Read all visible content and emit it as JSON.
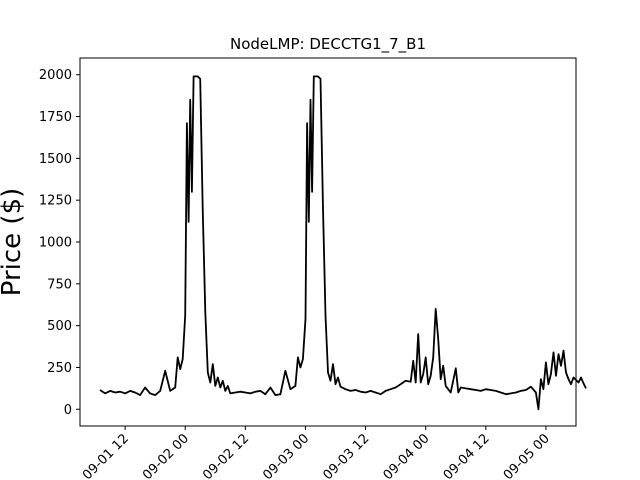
{
  "chart_data": {
    "type": "line",
    "title": "NodeLMP: DECCTG1_7_B1",
    "xlabel": "",
    "ylabel": "Price ($)",
    "x_axis_type": "datetime",
    "xlim": [
      "2024-09-01 03:00",
      "2024-09-05 06:00"
    ],
    "ylim": [
      -100,
      2100
    ],
    "yticks": [
      0,
      250,
      500,
      750,
      1000,
      1250,
      1500,
      1750,
      2000
    ],
    "ytick_labels": [
      "0",
      "250",
      "500",
      "750",
      "1000",
      "1250",
      "1500",
      "1750",
      "2000"
    ],
    "xticks": [
      "2024-09-01 12:00",
      "2024-09-02 00:00",
      "2024-09-02 12:00",
      "2024-09-03 00:00",
      "2024-09-03 12:00",
      "2024-09-04 00:00",
      "2024-09-04 12:00",
      "2024-09-05 00:00"
    ],
    "xtick_labels": [
      "09-01 12",
      "09-02 00",
      "09-02 12",
      "09-03 00",
      "09-03 12",
      "09-04 00",
      "09-04 12",
      "09-05 00"
    ],
    "grid": false,
    "legend": "none",
    "series": [
      {
        "color": "#000000",
        "points": [
          [
            "2024-09-01 07:00",
            115
          ],
          [
            "2024-09-01 08:00",
            95
          ],
          [
            "2024-09-01 09:00",
            110
          ],
          [
            "2024-09-01 10:00",
            100
          ],
          [
            "2024-09-01 11:00",
            105
          ],
          [
            "2024-09-01 12:00",
            95
          ],
          [
            "2024-09-01 13:00",
            110
          ],
          [
            "2024-09-01 14:00",
            100
          ],
          [
            "2024-09-01 15:00",
            85
          ],
          [
            "2024-09-01 16:00",
            130
          ],
          [
            "2024-09-01 17:00",
            95
          ],
          [
            "2024-09-01 18:00",
            85
          ],
          [
            "2024-09-01 19:00",
            110
          ],
          [
            "2024-09-01 20:00",
            230
          ],
          [
            "2024-09-01 21:00",
            110
          ],
          [
            "2024-09-01 22:00",
            130
          ],
          [
            "2024-09-01 22:30",
            310
          ],
          [
            "2024-09-01 23:00",
            240
          ],
          [
            "2024-09-01 23:30",
            300
          ],
          [
            "2024-09-02 00:00",
            560
          ],
          [
            "2024-09-02 00:20",
            1710
          ],
          [
            "2024-09-02 00:40",
            1120
          ],
          [
            "2024-09-02 01:00",
            1850
          ],
          [
            "2024-09-02 01:20",
            1300
          ],
          [
            "2024-09-02 01:40",
            1990
          ],
          [
            "2024-09-02 02:30",
            1990
          ],
          [
            "2024-09-02 03:00",
            1975
          ],
          [
            "2024-09-02 03:30",
            1200
          ],
          [
            "2024-09-02 04:00",
            580
          ],
          [
            "2024-09-02 04:30",
            220
          ],
          [
            "2024-09-02 05:00",
            160
          ],
          [
            "2024-09-02 05:30",
            270
          ],
          [
            "2024-09-02 06:00",
            140
          ],
          [
            "2024-09-02 06:30",
            190
          ],
          [
            "2024-09-02 07:00",
            130
          ],
          [
            "2024-09-02 07:30",
            170
          ],
          [
            "2024-09-02 08:00",
            110
          ],
          [
            "2024-09-02 08:30",
            140
          ],
          [
            "2024-09-02 09:00",
            95
          ],
          [
            "2024-09-02 10:00",
            100
          ],
          [
            "2024-09-02 11:00",
            105
          ],
          [
            "2024-09-02 12:00",
            100
          ],
          [
            "2024-09-02 13:00",
            95
          ],
          [
            "2024-09-02 14:00",
            105
          ],
          [
            "2024-09-02 15:00",
            110
          ],
          [
            "2024-09-02 16:00",
            90
          ],
          [
            "2024-09-02 17:00",
            130
          ],
          [
            "2024-09-02 18:00",
            85
          ],
          [
            "2024-09-02 19:00",
            90
          ],
          [
            "2024-09-02 20:00",
            230
          ],
          [
            "2024-09-02 21:00",
            120
          ],
          [
            "2024-09-02 22:00",
            140
          ],
          [
            "2024-09-02 22:30",
            310
          ],
          [
            "2024-09-02 23:00",
            250
          ],
          [
            "2024-09-02 23:30",
            300
          ],
          [
            "2024-09-03 00:00",
            540
          ],
          [
            "2024-09-03 00:20",
            1710
          ],
          [
            "2024-09-03 00:40",
            1120
          ],
          [
            "2024-09-03 01:00",
            1850
          ],
          [
            "2024-09-03 01:20",
            1300
          ],
          [
            "2024-09-03 01:40",
            1990
          ],
          [
            "2024-09-03 02:30",
            1990
          ],
          [
            "2024-09-03 03:00",
            1975
          ],
          [
            "2024-09-03 03:30",
            1200
          ],
          [
            "2024-09-03 04:00",
            560
          ],
          [
            "2024-09-03 04:30",
            220
          ],
          [
            "2024-09-03 05:00",
            170
          ],
          [
            "2024-09-03 05:30",
            270
          ],
          [
            "2024-09-03 06:00",
            150
          ],
          [
            "2024-09-03 06:30",
            190
          ],
          [
            "2024-09-03 07:00",
            135
          ],
          [
            "2024-09-03 08:00",
            120
          ],
          [
            "2024-09-03 09:00",
            110
          ],
          [
            "2024-09-03 10:00",
            115
          ],
          [
            "2024-09-03 11:00",
            105
          ],
          [
            "2024-09-03 12:00",
            100
          ],
          [
            "2024-09-03 13:00",
            110
          ],
          [
            "2024-09-03 14:00",
            100
          ],
          [
            "2024-09-03 15:00",
            90
          ],
          [
            "2024-09-03 16:00",
            110
          ],
          [
            "2024-09-03 17:00",
            120
          ],
          [
            "2024-09-03 18:00",
            130
          ],
          [
            "2024-09-03 19:00",
            150
          ],
          [
            "2024-09-03 20:00",
            170
          ],
          [
            "2024-09-03 21:00",
            165
          ],
          [
            "2024-09-03 21:30",
            290
          ],
          [
            "2024-09-03 22:00",
            160
          ],
          [
            "2024-09-03 22:30",
            450
          ],
          [
            "2024-09-03 23:00",
            160
          ],
          [
            "2024-09-03 23:30",
            210
          ],
          [
            "2024-09-04 00:00",
            310
          ],
          [
            "2024-09-04 00:30",
            150
          ],
          [
            "2024-09-04 01:00",
            200
          ],
          [
            "2024-09-04 01:30",
            310
          ],
          [
            "2024-09-04 02:00",
            600
          ],
          [
            "2024-09-04 02:30",
            420
          ],
          [
            "2024-09-04 03:00",
            180
          ],
          [
            "2024-09-04 03:30",
            260
          ],
          [
            "2024-09-04 04:00",
            140
          ],
          [
            "2024-09-04 05:00",
            100
          ],
          [
            "2024-09-04 06:00",
            245
          ],
          [
            "2024-09-04 06:30",
            100
          ],
          [
            "2024-09-04 07:00",
            130
          ],
          [
            "2024-09-04 08:00",
            125
          ],
          [
            "2024-09-04 09:00",
            120
          ],
          [
            "2024-09-04 10:00",
            115
          ],
          [
            "2024-09-04 11:00",
            110
          ],
          [
            "2024-09-04 12:00",
            120
          ],
          [
            "2024-09-04 13:00",
            115
          ],
          [
            "2024-09-04 14:00",
            110
          ],
          [
            "2024-09-04 15:00",
            100
          ],
          [
            "2024-09-04 16:00",
            90
          ],
          [
            "2024-09-04 17:00",
            95
          ],
          [
            "2024-09-04 18:00",
            100
          ],
          [
            "2024-09-04 19:00",
            110
          ],
          [
            "2024-09-04 20:00",
            115
          ],
          [
            "2024-09-04 21:00",
            135
          ],
          [
            "2024-09-04 22:00",
            100
          ],
          [
            "2024-09-04 22:30",
            0
          ],
          [
            "2024-09-04 23:00",
            180
          ],
          [
            "2024-09-04 23:30",
            120
          ],
          [
            "2024-09-05 00:00",
            280
          ],
          [
            "2024-09-05 00:30",
            150
          ],
          [
            "2024-09-05 01:00",
            210
          ],
          [
            "2024-09-05 01:30",
            340
          ],
          [
            "2024-09-05 02:00",
            200
          ],
          [
            "2024-09-05 02:30",
            330
          ],
          [
            "2024-09-05 03:00",
            260
          ],
          [
            "2024-09-05 03:30",
            350
          ],
          [
            "2024-09-05 04:00",
            220
          ],
          [
            "2024-09-05 04:30",
            180
          ],
          [
            "2024-09-05 05:00",
            150
          ],
          [
            "2024-09-05 05:30",
            190
          ],
          [
            "2024-09-05 06:00",
            175
          ],
          [
            "2024-09-05 06:30",
            160
          ],
          [
            "2024-09-05 07:00",
            190
          ],
          [
            "2024-09-05 07:30",
            155
          ],
          [
            "2024-09-05 08:00",
            125
          ]
        ]
      }
    ]
  }
}
